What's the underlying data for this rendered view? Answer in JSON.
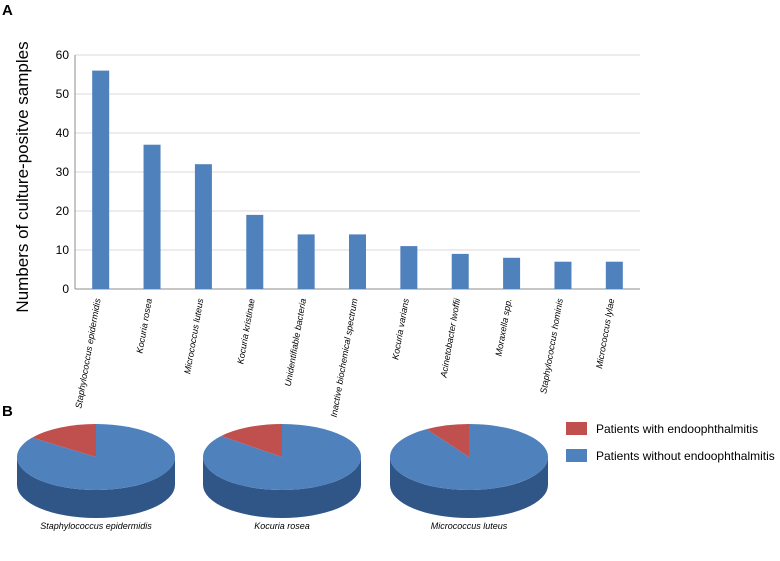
{
  "panels": {
    "a": "A",
    "b": "B"
  },
  "colors": {
    "bar": "#4f81bd",
    "with": "#c0504d",
    "without": "#4f81bd",
    "without_side": "#2f5686",
    "with_side": "#8c3330",
    "grid": "#d9d9d9"
  },
  "chart_data": [
    {
      "type": "bar",
      "categories": [
        "Staphylococcus epidermidis",
        "Kocuria rosea",
        "Micrococcus luteus",
        "Kocuria kristinae",
        "Unidentifiable bacteria",
        "Inactive biochemical spectrum",
        "Kocuria varians",
        "Acinetobacter lwoffii",
        "Moraxella spp.",
        "Staphylococcus hominis",
        "Micrococcus lylae"
      ],
      "values": [
        56,
        37,
        32,
        19,
        14,
        14,
        11,
        9,
        8,
        7,
        7
      ],
      "ylabel": "Numbers of culture-positve samples",
      "ylim": [
        0,
        60
      ],
      "yticks": [
        0,
        10,
        20,
        30,
        40,
        50,
        60
      ],
      "grid": true
    },
    {
      "type": "pie",
      "legend": [
        "Patients with endoophthalmitis",
        "Patients without endoophthalmitis"
      ],
      "legend_position": "right",
      "pies": [
        {
          "label": "Staphylococcus epidermidis",
          "values": [
            15,
            85
          ]
        },
        {
          "label": "Kocuria rosea",
          "values": [
            14,
            86
          ]
        },
        {
          "label": "Micrococcus luteus",
          "values": [
            9,
            91
          ]
        }
      ]
    }
  ]
}
